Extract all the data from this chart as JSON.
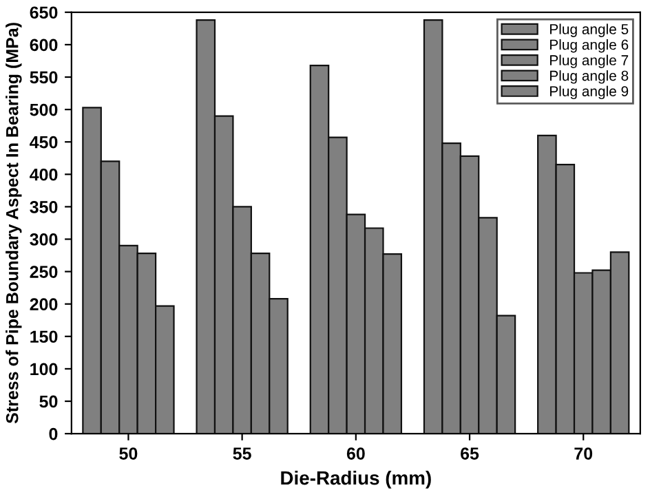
{
  "chart_data": {
    "type": "bar",
    "xlabel": "Die-Radius (mm)",
    "ylabel": "Stress of Pipe Boundary Aspect In Bearing (MPa)",
    "categories": [
      "50",
      "55",
      "60",
      "65",
      "70"
    ],
    "series": [
      {
        "name": "Plug angle 5",
        "color": "#808080",
        "values": [
          503,
          638,
          568,
          638,
          460
        ]
      },
      {
        "name": "Plug angle 6",
        "color": "#808080",
        "values": [
          420,
          490,
          457,
          448,
          415
        ]
      },
      {
        "name": "Plug angle 7",
        "color": "#808080",
        "values": [
          290,
          350,
          338,
          428,
          248
        ]
      },
      {
        "name": "Plug angle 8",
        "color": "#808080",
        "values": [
          278,
          278,
          317,
          333,
          252
        ]
      },
      {
        "name": "Plug angle 9",
        "color": "#808080",
        "values": [
          197,
          208,
          277,
          182,
          280
        ]
      }
    ],
    "ylim": [
      0,
      650
    ],
    "yticks": [
      0,
      50,
      100,
      150,
      200,
      250,
      300,
      350,
      400,
      450,
      500,
      550,
      600,
      650
    ],
    "legend": "top right",
    "grid": false
  }
}
